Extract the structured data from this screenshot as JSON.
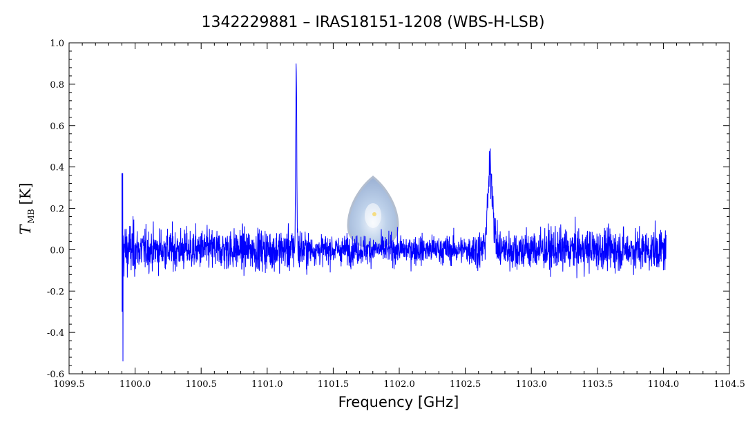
{
  "chart_data": {
    "type": "line",
    "title": "1342229881 – IRAS18151-1208 (WBS-H-LSB)",
    "xlabel": "Frequency [GHz]",
    "ylabel": {
      "symbol": "T",
      "subscript": "MB",
      "unit": "[K]"
    },
    "xlim": [
      1099.5,
      1104.5
    ],
    "ylim": [
      -0.6,
      1.0
    ],
    "x_ticks": [
      "1099.5",
      "1100.0",
      "1100.5",
      "1101.0",
      "1101.5",
      "1102.0",
      "1102.5",
      "1103.0",
      "1103.5",
      "1104.0",
      "1104.5"
    ],
    "y_ticks": [
      "1.0",
      "0.8",
      "0.6",
      "0.4",
      "0.2",
      "0.0",
      "-0.2",
      "-0.4",
      "-0.6"
    ],
    "grid": false,
    "series": [
      {
        "color": "#0000ff",
        "x_start": 1099.9,
        "x_end": 1104.02,
        "baseline": 0.0,
        "noise_rms": 0.07,
        "features": [
          {
            "kind": "edge_spike",
            "x": 1099.9,
            "min": -0.54,
            "max": 0.37
          },
          {
            "kind": "narrow_line",
            "x": 1101.22,
            "peak": 0.88
          },
          {
            "kind": "broad_line",
            "x": 1102.69,
            "peak": 0.5
          }
        ],
        "min_value": -0.54,
        "max_value": 0.88
      }
    ]
  },
  "logo": {
    "name": "herschel-logo-icon",
    "color": "#b8c8e0"
  }
}
